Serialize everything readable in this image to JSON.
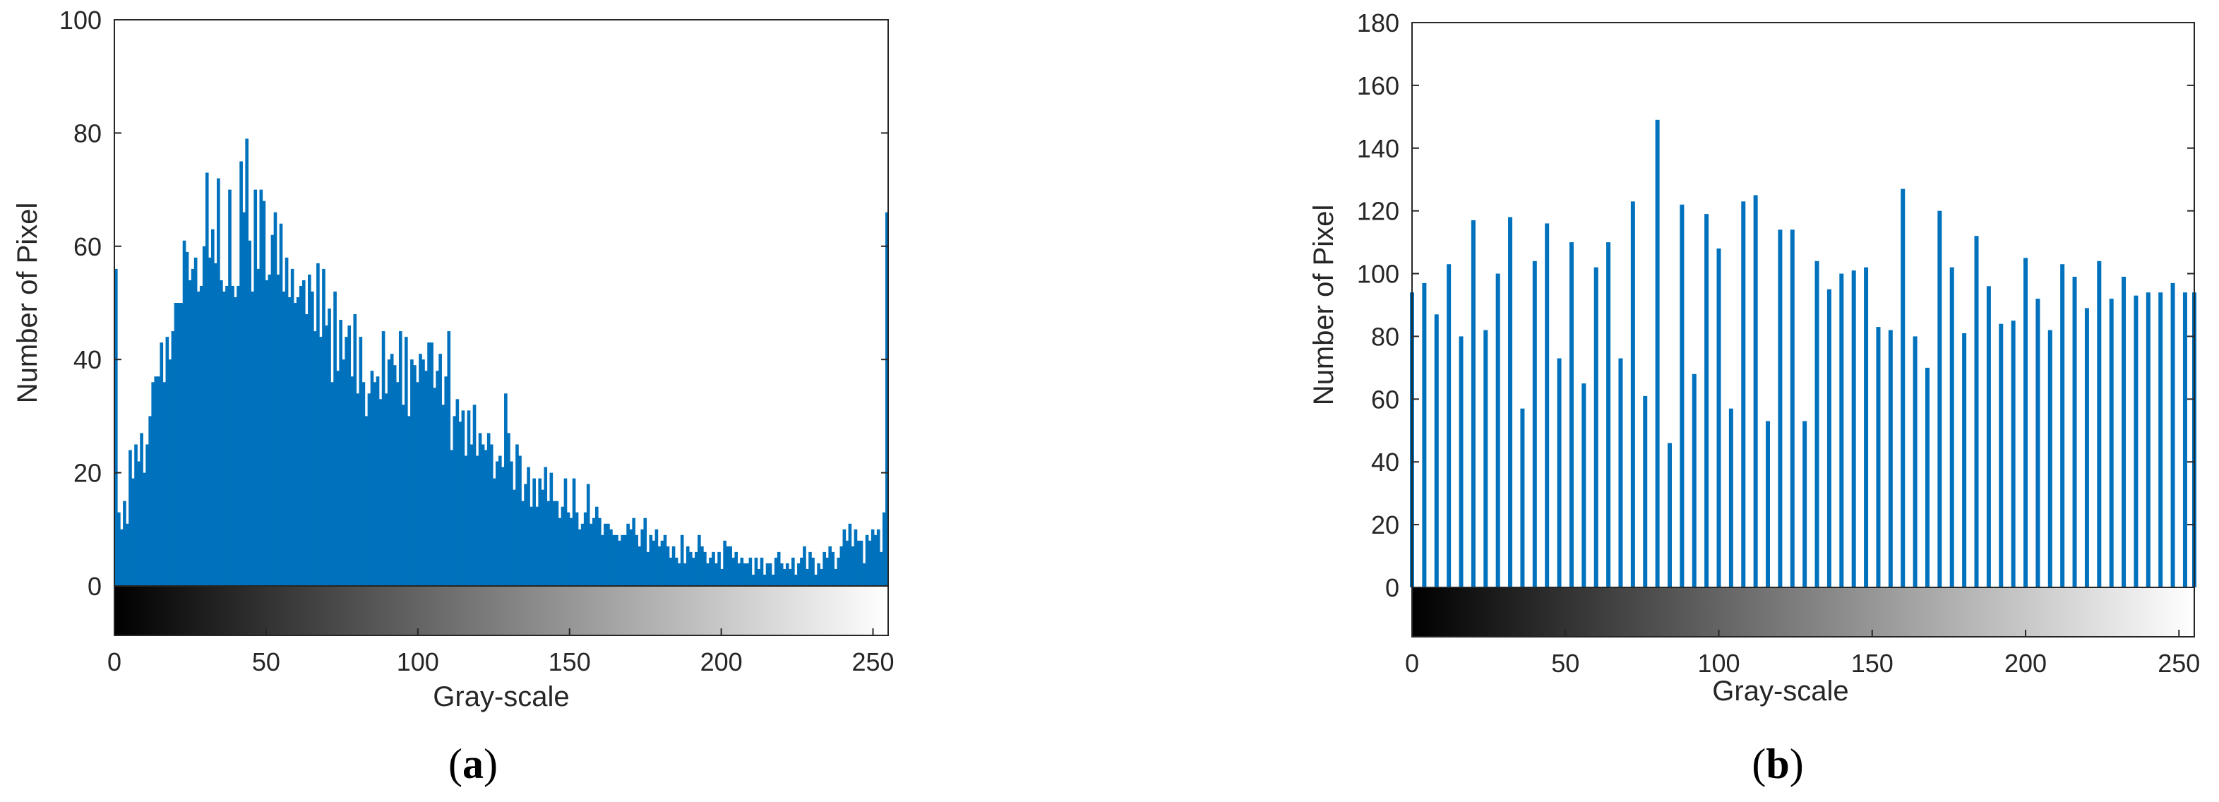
{
  "colors": {
    "bar": "#0072BD",
    "axis": "#262626",
    "background": "#ffffff"
  },
  "chart_data": [
    {
      "type": "bar",
      "panel_label": "a",
      "title": "",
      "xlabel": "Gray-scale",
      "ylabel": "Number of Pixel",
      "xlim": [
        0,
        255
      ],
      "ylim": [
        0,
        100
      ],
      "xticks": [
        0,
        50,
        100,
        150,
        200,
        250
      ],
      "yticks": [
        0,
        20,
        40,
        60,
        80,
        100
      ],
      "colorbar": "grayscale 0-255",
      "grid": false,
      "x_start": 0,
      "values": [
        56,
        13,
        10,
        15,
        11,
        24,
        19,
        25,
        22,
        27,
        20,
        25,
        30,
        36,
        37,
        37,
        43,
        36,
        44,
        40,
        45,
        50,
        50,
        50,
        61,
        59,
        54,
        56,
        58,
        52,
        53,
        60,
        73,
        58,
        63,
        57,
        72,
        54,
        52,
        53,
        70,
        53,
        51,
        53,
        75,
        66,
        79,
        61,
        52,
        70,
        56,
        70,
        68,
        54,
        55,
        62,
        66,
        55,
        64,
        52,
        58,
        51,
        56,
        50,
        51,
        53,
        54,
        48,
        55,
        52,
        45,
        57,
        44,
        56,
        46,
        49,
        36,
        52,
        38,
        47,
        40,
        44,
        46,
        37,
        48,
        34,
        44,
        36,
        30,
        34,
        38,
        36,
        37,
        33,
        45,
        34,
        40,
        41,
        39,
        36,
        45,
        32,
        44,
        30,
        40,
        39,
        36,
        41,
        40,
        38,
        43,
        43,
        35,
        38,
        41,
        32,
        37,
        45,
        24,
        30,
        33,
        29,
        31,
        23,
        31,
        25,
        32,
        23,
        27,
        25,
        24,
        27,
        25,
        19,
        22,
        23,
        21,
        34,
        27,
        22,
        17,
        25,
        23,
        15,
        18,
        21,
        14,
        19,
        14,
        19,
        17,
        21,
        15,
        20,
        15,
        15,
        12,
        14,
        19,
        13,
        12,
        19,
        13,
        10,
        11,
        13,
        18,
        11,
        12,
        14,
        12,
        9,
        11,
        11,
        10,
        9,
        9,
        8,
        9,
        9,
        11,
        10,
        12,
        9,
        7,
        10,
        12,
        6,
        9,
        8,
        10,
        7,
        8,
        9,
        7,
        5,
        7,
        5,
        4,
        9,
        4,
        7,
        6,
        5,
        6,
        9,
        7,
        6,
        4,
        5,
        6,
        4,
        6,
        3,
        8,
        7,
        7,
        5,
        6,
        4,
        5,
        4,
        4,
        5,
        2,
        5,
        3,
        5,
        2,
        4,
        4,
        2,
        5,
        6,
        4,
        3,
        4,
        3,
        5,
        2,
        4,
        5,
        7,
        3,
        6,
        5,
        2,
        4,
        3,
        6,
        5,
        7,
        6,
        3,
        5,
        7,
        10,
        8,
        11,
        7,
        10,
        8,
        8,
        4,
        9,
        8,
        10,
        9,
        10,
        6,
        13,
        66
      ]
    },
    {
      "type": "bar",
      "panel_label": "b",
      "title": "",
      "xlabel": "Gray-scale",
      "ylabel": "Number of Pixel",
      "xlim": [
        0,
        255
      ],
      "ylim": [
        0,
        180
      ],
      "xticks": [
        0,
        50,
        100,
        150,
        200,
        250
      ],
      "yticks": [
        0,
        20,
        40,
        60,
        80,
        100,
        120,
        140,
        160,
        180
      ],
      "colorbar": "grayscale 0-255",
      "grid": false,
      "x": [
        0,
        4,
        8,
        12,
        16,
        20,
        24,
        28,
        32,
        36,
        40,
        44,
        48,
        52,
        56,
        60,
        64,
        68,
        72,
        76,
        80,
        84,
        88,
        92,
        96,
        100,
        104,
        108,
        112,
        116,
        120,
        124,
        128,
        132,
        136,
        140,
        144,
        148,
        152,
        156,
        160,
        164,
        168,
        172,
        176,
        180,
        184,
        188,
        192,
        196,
        200,
        204,
        208,
        212,
        216,
        220,
        224,
        228,
        232,
        236,
        240,
        244,
        248,
        252,
        255
      ],
      "values": [
        94,
        97,
        87,
        103,
        80,
        117,
        82,
        100,
        118,
        57,
        104,
        116,
        73,
        110,
        65,
        102,
        110,
        73,
        123,
        61,
        149,
        46,
        122,
        68,
        119,
        108,
        57,
        123,
        125,
        53,
        114,
        114,
        53,
        104,
        95,
        100,
        101,
        102,
        83,
        82,
        127,
        80,
        70,
        120,
        102,
        81,
        112,
        96,
        84,
        85,
        105,
        92,
        82,
        103,
        99,
        89,
        104,
        92,
        99,
        93,
        94,
        94,
        97,
        94,
        94
      ]
    }
  ]
}
